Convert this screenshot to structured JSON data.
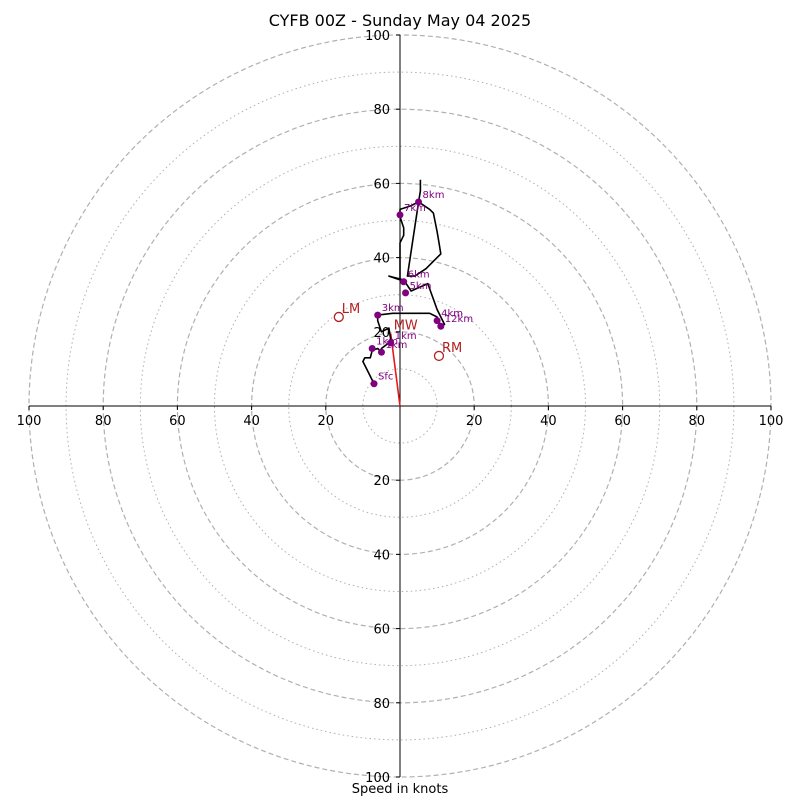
{
  "chart_data": {
    "type": "scatter",
    "title": "CYFB 00Z - Sunday May 04 2025",
    "xlabel": "Speed in knots",
    "ylabel": "",
    "xlim": [
      -100,
      100
    ],
    "ylim": [
      -100,
      100
    ],
    "rings_dashed": [
      20,
      40,
      60,
      80,
      100
    ],
    "rings_dotted": [
      10,
      30,
      50,
      70,
      90
    ],
    "x_ticks": [
      {
        "value": -100,
        "label": "100"
      },
      {
        "value": -80,
        "label": "80"
      },
      {
        "value": -60,
        "label": "60"
      },
      {
        "value": -40,
        "label": "40"
      },
      {
        "value": -20,
        "label": "20"
      },
      {
        "value": 20,
        "label": "20"
      },
      {
        "value": 40,
        "label": "40"
      },
      {
        "value": 60,
        "label": "60"
      },
      {
        "value": 80,
        "label": "80"
      },
      {
        "value": 100,
        "label": "100"
      }
    ],
    "y_ticks": [
      {
        "value": 100,
        "label": "100"
      },
      {
        "value": 80,
        "label": "80"
      },
      {
        "value": 60,
        "label": "60"
      },
      {
        "value": 40,
        "label": "40"
      },
      {
        "value": 20,
        "label": "20"
      },
      {
        "value": -20,
        "label": "20"
      },
      {
        "value": -40,
        "label": "40"
      },
      {
        "value": -60,
        "label": "60"
      },
      {
        "value": -80,
        "label": "80"
      },
      {
        "value": -100,
        "label": "100"
      }
    ],
    "hodograph_line": [
      [
        -7,
        6
      ],
      [
        -8.5,
        9
      ],
      [
        -10,
        12
      ],
      [
        -9.5,
        13
      ],
      [
        -8,
        13
      ],
      [
        -7.5,
        15
      ],
      [
        -6,
        15.5
      ],
      [
        -4.5,
        14
      ],
      [
        -5,
        15.5
      ],
      [
        -3,
        17
      ],
      [
        -2.5,
        18
      ],
      [
        -3,
        21
      ],
      [
        -5,
        20
      ],
      [
        -6,
        23
      ],
      [
        -6,
        24.5
      ],
      [
        -2,
        25
      ],
      [
        8,
        25
      ],
      [
        10,
        24
      ],
      [
        11,
        21.5
      ],
      [
        12,
        22
      ],
      [
        10,
        26
      ],
      [
        7.5,
        33
      ],
      [
        3,
        31
      ],
      [
        1,
        34
      ],
      [
        -3,
        35
      ],
      [
        0,
        34
      ],
      [
        0,
        44
      ],
      [
        1,
        46
      ],
      [
        1,
        48
      ],
      [
        0,
        51
      ],
      [
        0,
        53
      ],
      [
        3,
        54
      ],
      [
        5,
        55
      ],
      [
        8,
        53
      ],
      [
        9,
        52
      ],
      [
        10,
        47
      ],
      [
        10.5,
        44
      ],
      [
        11,
        41
      ],
      [
        10,
        40
      ],
      [
        7,
        37
      ],
      [
        4,
        35
      ],
      [
        2,
        35
      ],
      [
        5,
        55
      ],
      [
        5.5,
        58
      ],
      [
        5.5,
        61
      ]
    ],
    "height_markers": [
      {
        "label": "Sfc",
        "u": -7,
        "v": 6
      },
      {
        "label": "1km",
        "u": -7.5,
        "v": 15.5
      },
      {
        "label": "1km",
        "u": -5,
        "v": 14.5
      },
      {
        "label": "1km",
        "u": -2.5,
        "v": 17
      },
      {
        "label": "3km",
        "u": -6,
        "v": 24.5
      },
      {
        "label": "4km",
        "u": 10,
        "v": 23
      },
      {
        "label": "12km",
        "u": 11,
        "v": 21.5
      },
      {
        "label": "5km",
        "u": 1.5,
        "v": 30.5
      },
      {
        "label": "6km",
        "u": 1,
        "v": 33.5
      },
      {
        "label": "7km",
        "u": 0,
        "v": 51.5
      },
      {
        "label": "8km",
        "u": 5,
        "v": 55
      }
    ],
    "motion_markers": [
      {
        "label": "LM",
        "u": -16.5,
        "v": 24
      },
      {
        "label": "RM",
        "u": 10.5,
        "v": 13.5
      },
      {
        "label": "MW",
        "u": -2.5,
        "v": 19.5
      }
    ],
    "mean_wind_vector": {
      "u": -2.5,
      "v": 19.5
    },
    "colors": {
      "hodograph": "#000000",
      "height_marker": "#800080",
      "motion": "#b22222",
      "vector": "#e41a1c",
      "ring": "#b0b0b0"
    }
  }
}
